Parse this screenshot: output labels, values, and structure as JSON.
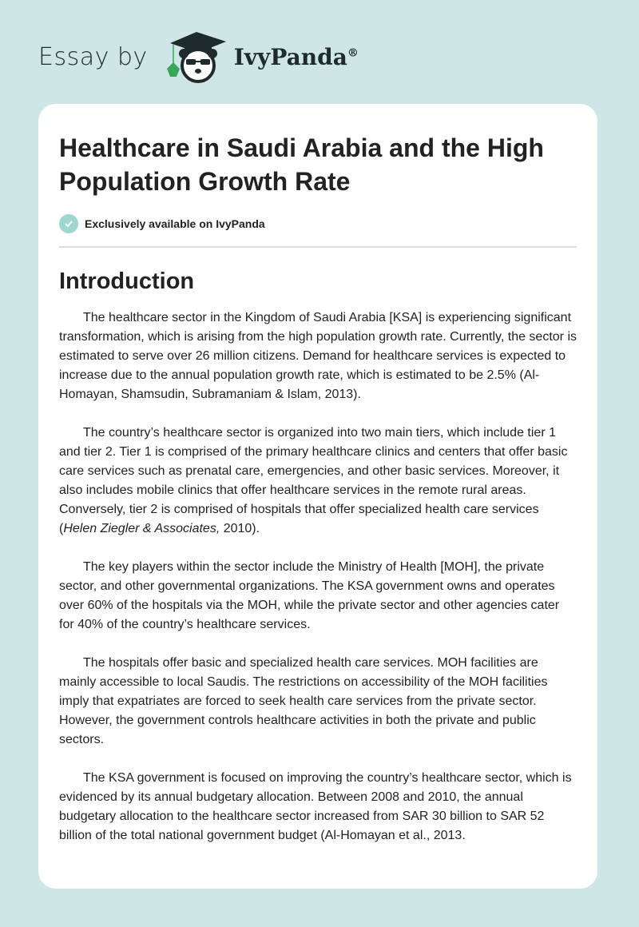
{
  "header": {
    "essay_by": "Essay by",
    "brand": "IvyPanda",
    "registered": "®",
    "logo_icon": "panda-graduate-logo-icon"
  },
  "article": {
    "title": "Healthcare in Saudi Arabia and the High Population Growth Rate",
    "badge": "Exclusively available on IvyPanda",
    "badge_color": "#9fd6cf",
    "section_heading": "Introduction",
    "paragraphs": [
      [
        "The healthcare sector in the Kingdom of Saudi Arabia [KSA] is experiencing significant transformation, which is arising from the high population growth rate. Currently, the sector is estimated to serve over 26 million citizens. Demand for healthcare services is expected to increase due to the annual population growth rate, which is estimated to be 2.5% (Al-Homayan, Shamsudin, Subramaniam & Islam, 2013).",
        "",
        ""
      ],
      [
        "The country’s healthcare sector is organized into two main tiers, which include tier 1 and tier 2. Tier 1 is comprised of the primary healthcare clinics and centers that offer basic care services such as prenatal care, emergencies, and other basic services. Moreover, it also includes mobile clinics that offer healthcare services in the remote rural areas. Conversely, tier 2 is comprised of hospitals that offer specialized health care services (",
        "Helen Ziegler & Associates,",
        " 2010)."
      ],
      [
        "The key players within the sector include the Ministry of Health [MOH], the private sector, and other governmental organizations. The KSA government owns and operates over 60% of the hospitals via the MOH, while the private sector and other agencies cater for 40% of the country’s healthcare services.",
        "",
        ""
      ],
      [
        "The hospitals offer basic and specialized health care services. MOH facilities are mainly accessible to local Saudis. The restrictions on accessibility of the MOH facilities imply that expatriates are forced to seek health care services from the private sector. However, the government controls healthcare activities in both the private and public sectors.",
        "",
        ""
      ],
      [
        "The KSA government is focused on improving the country’s healthcare sector, which is evidenced by its annual budgetary allocation. Between 2008 and 2010, the annual budgetary allocation to the healthcare sector increased from SAR 30 billion to SAR 52 billion of the total national government budget (Al-Homayan et al., 2013.",
        "",
        ""
      ]
    ]
  }
}
